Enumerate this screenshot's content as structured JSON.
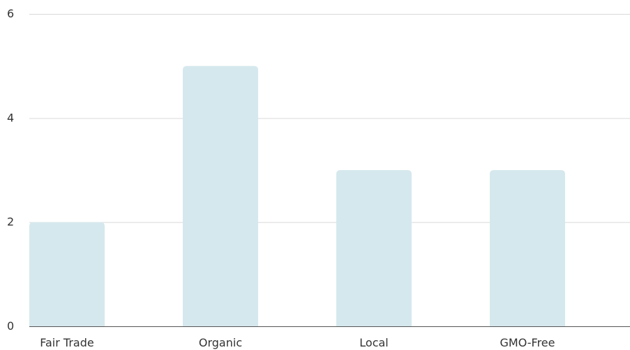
{
  "chart_data": {
    "type": "bar",
    "categories": [
      "Fair Trade",
      "Organic",
      "Local",
      "GMO-Free"
    ],
    "values": [
      2,
      5,
      3,
      3
    ],
    "y_ticks": [
      "0",
      "2",
      "4",
      "6"
    ],
    "ylim": [
      0,
      6
    ],
    "grid": true,
    "legend": "none",
    "colors": {
      "bar": "#d5e8ed",
      "grid": "#d9d9d9",
      "axis": "#555555",
      "text": "#333333"
    }
  }
}
